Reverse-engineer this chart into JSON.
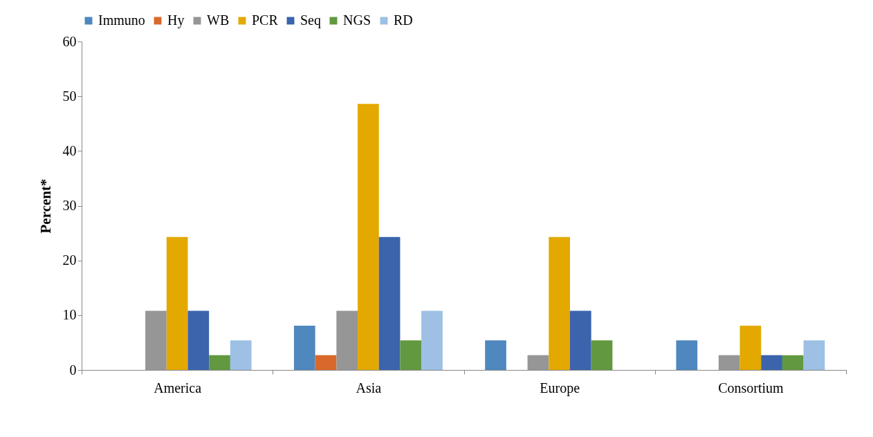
{
  "chart_data": {
    "type": "bar",
    "ylabel": "Percent*",
    "categories": [
      "America",
      "Asia",
      "Europe",
      "Consortium"
    ],
    "series": [
      {
        "name": "Immuno",
        "color": "#4f87bf",
        "values": [
          0,
          8.1,
          5.4,
          5.4
        ]
      },
      {
        "name": "Hy",
        "color": "#d9692a",
        "values": [
          0,
          2.7,
          0,
          0
        ]
      },
      {
        "name": "WB",
        "color": "#969696",
        "values": [
          10.8,
          10.8,
          2.7,
          2.7
        ]
      },
      {
        "name": "PCR",
        "color": "#e3a900",
        "values": [
          24.3,
          48.6,
          24.3,
          8.1
        ]
      },
      {
        "name": "Seq",
        "color": "#3b64ad",
        "values": [
          10.8,
          24.3,
          10.8,
          2.7
        ]
      },
      {
        "name": "NGS",
        "color": "#62983f",
        "values": [
          2.7,
          5.4,
          5.4,
          2.7
        ]
      },
      {
        "name": "RD",
        "color": "#9dc0e4",
        "values": [
          5.4,
          10.8,
          0,
          5.4
        ]
      }
    ],
    "ylim": [
      0,
      60
    ],
    "yticks": [
      0,
      10,
      20,
      30,
      40,
      50,
      60
    ],
    "grid": false,
    "legend": "top"
  }
}
